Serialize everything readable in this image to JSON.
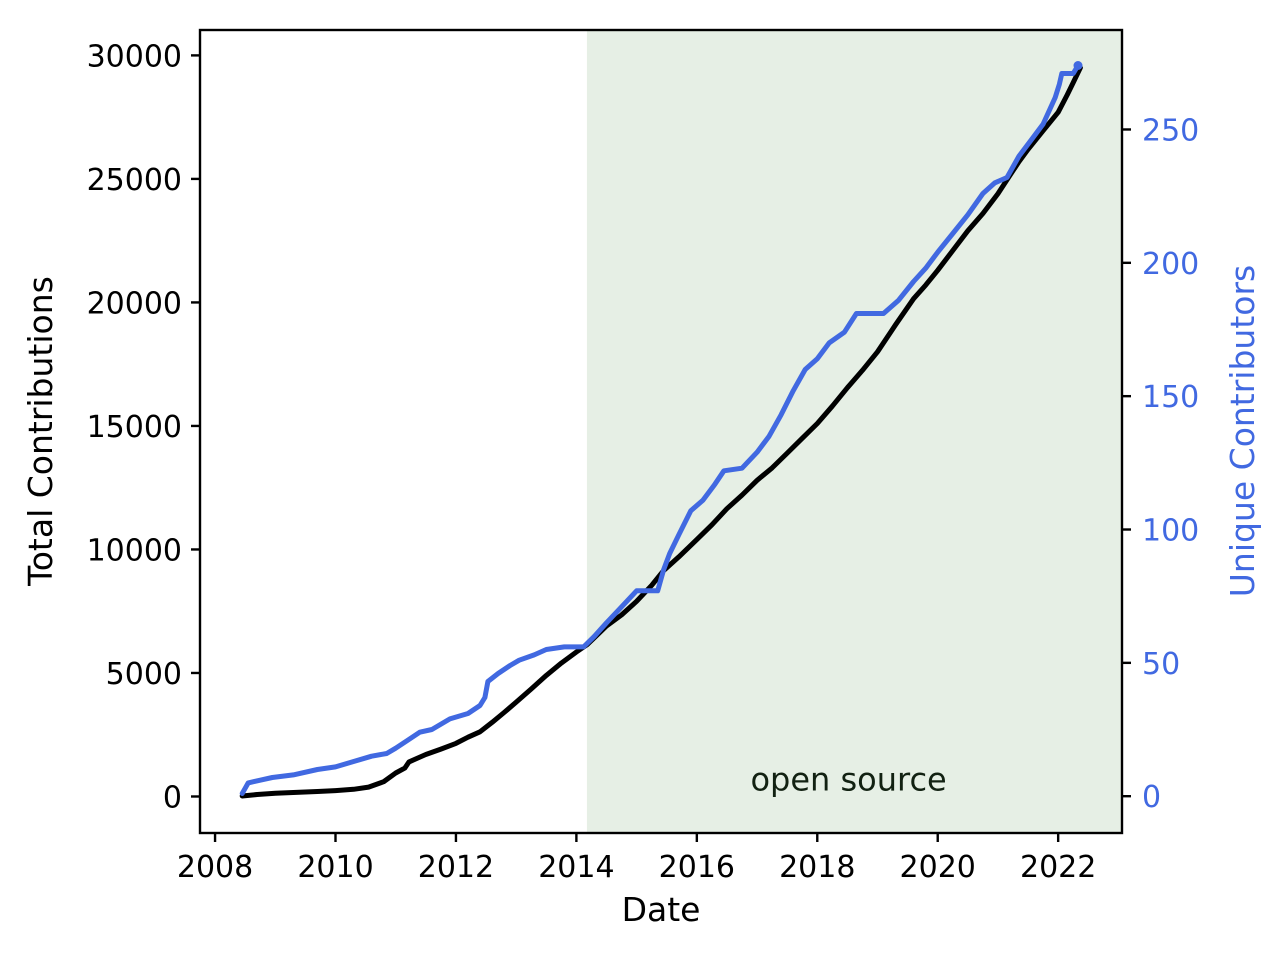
{
  "chart_data": {
    "type": "line",
    "title": "",
    "xlabel": "Date",
    "ylabel_left": "Total Contributions",
    "ylabel_right": "Unique Contributors",
    "xlim": [
      2007.75,
      2023.06
    ],
    "ylim_left": [
      -1478,
      31028
    ],
    "ylim_right": [
      -13.8,
      287.3
    ],
    "grid": false,
    "legend": "none",
    "x_ticks": [
      {
        "v": 2008,
        "label": "2008"
      },
      {
        "v": 2010,
        "label": "2010"
      },
      {
        "v": 2012,
        "label": "2012"
      },
      {
        "v": 2014,
        "label": "2014"
      },
      {
        "v": 2016,
        "label": "2016"
      },
      {
        "v": 2018,
        "label": "2018"
      },
      {
        "v": 2020,
        "label": "2020"
      },
      {
        "v": 2022,
        "label": "2022"
      }
    ],
    "y_ticks_left": [
      {
        "v": 0,
        "label": "0"
      },
      {
        "v": 5000,
        "label": "5000"
      },
      {
        "v": 10000,
        "label": "10000"
      },
      {
        "v": 15000,
        "label": "15000"
      },
      {
        "v": 20000,
        "label": "20000"
      },
      {
        "v": 25000,
        "label": "25000"
      },
      {
        "v": 30000,
        "label": "30000"
      }
    ],
    "y_ticks_right": [
      {
        "v": 0,
        "label": "0"
      },
      {
        "v": 50,
        "label": "50"
      },
      {
        "v": 100,
        "label": "100"
      },
      {
        "v": 150,
        "label": "150"
      },
      {
        "v": 200,
        "label": "200"
      },
      {
        "v": 250,
        "label": "250"
      }
    ],
    "shaded_region": {
      "x_start": 2014.175,
      "x_end": 2023.06,
      "color": "#e6efe5",
      "meaning": "period after project went open source"
    },
    "annotation": {
      "text": "open source",
      "x": 2018.52,
      "y_left": 250
    },
    "colors": {
      "total_contributions_line": "#000000",
      "unique_contributors_line": "#4169e1",
      "right_axis_text": "#4169e1",
      "annotation_text": "#122112",
      "spine": "#000000",
      "background": "#ffffff"
    },
    "series": [
      {
        "name": "Total Contributions",
        "axis": "left",
        "color": "#000000",
        "points": [
          [
            2008.45,
            20
          ],
          [
            2008.7,
            80
          ],
          [
            2009.0,
            130
          ],
          [
            2009.3,
            160
          ],
          [
            2009.7,
            200
          ],
          [
            2010.0,
            240
          ],
          [
            2010.3,
            290
          ],
          [
            2010.55,
            380
          ],
          [
            2010.8,
            600
          ],
          [
            2011.0,
            950
          ],
          [
            2011.15,
            1150
          ],
          [
            2011.22,
            1400
          ],
          [
            2011.5,
            1700
          ],
          [
            2011.75,
            1920
          ],
          [
            2012.0,
            2150
          ],
          [
            2012.2,
            2400
          ],
          [
            2012.4,
            2620
          ],
          [
            2012.6,
            3000
          ],
          [
            2012.8,
            3400
          ],
          [
            2013.0,
            3820
          ],
          [
            2013.25,
            4350
          ],
          [
            2013.5,
            4900
          ],
          [
            2013.75,
            5400
          ],
          [
            2014.0,
            5850
          ],
          [
            2014.18,
            6150
          ],
          [
            2014.5,
            6900
          ],
          [
            2014.75,
            7350
          ],
          [
            2015.0,
            7900
          ],
          [
            2015.25,
            8550
          ],
          [
            2015.45,
            9150
          ],
          [
            2015.7,
            9700
          ],
          [
            2016.0,
            10400
          ],
          [
            2016.25,
            11000
          ],
          [
            2016.5,
            11650
          ],
          [
            2016.75,
            12200
          ],
          [
            2017.0,
            12800
          ],
          [
            2017.25,
            13300
          ],
          [
            2017.5,
            13900
          ],
          [
            2017.75,
            14500
          ],
          [
            2018.0,
            15100
          ],
          [
            2018.25,
            15800
          ],
          [
            2018.5,
            16550
          ],
          [
            2018.75,
            17250
          ],
          [
            2019.0,
            18000
          ],
          [
            2019.3,
            19100
          ],
          [
            2019.6,
            20150
          ],
          [
            2019.8,
            20700
          ],
          [
            2020.0,
            21300
          ],
          [
            2020.25,
            22100
          ],
          [
            2020.5,
            22900
          ],
          [
            2020.75,
            23600
          ],
          [
            2021.0,
            24400
          ],
          [
            2021.16,
            25000
          ],
          [
            2021.35,
            25700
          ],
          [
            2021.5,
            26200
          ],
          [
            2021.75,
            26950
          ],
          [
            2022.0,
            27700
          ],
          [
            2022.15,
            28400
          ],
          [
            2022.25,
            28900
          ],
          [
            2022.37,
            29500
          ]
        ]
      },
      {
        "name": "Unique Contributors",
        "axis": "right",
        "color": "#4169e1",
        "points": [
          [
            2008.45,
            1
          ],
          [
            2008.5,
            3
          ],
          [
            2008.55,
            5
          ],
          [
            2008.75,
            6
          ],
          [
            2008.95,
            7
          ],
          [
            2009.3,
            8
          ],
          [
            2009.7,
            10
          ],
          [
            2010.0,
            11
          ],
          [
            2010.3,
            13
          ],
          [
            2010.6,
            15
          ],
          [
            2010.85,
            16
          ],
          [
            2011.0,
            18
          ],
          [
            2011.2,
            21
          ],
          [
            2011.4,
            24
          ],
          [
            2011.6,
            25
          ],
          [
            2011.9,
            29
          ],
          [
            2012.2,
            31
          ],
          [
            2012.4,
            34
          ],
          [
            2012.48,
            37
          ],
          [
            2012.53,
            43
          ],
          [
            2012.7,
            46
          ],
          [
            2012.9,
            49
          ],
          [
            2013.05,
            51
          ],
          [
            2013.3,
            53
          ],
          [
            2013.5,
            55
          ],
          [
            2013.8,
            56
          ],
          [
            2014.12,
            56
          ],
          [
            2014.3,
            60
          ],
          [
            2014.5,
            65
          ],
          [
            2014.75,
            71
          ],
          [
            2015.0,
            77
          ],
          [
            2015.35,
            77
          ],
          [
            2015.45,
            85
          ],
          [
            2015.55,
            91
          ],
          [
            2015.7,
            98
          ],
          [
            2015.9,
            107
          ],
          [
            2016.1,
            111
          ],
          [
            2016.3,
            117
          ],
          [
            2016.45,
            122
          ],
          [
            2016.75,
            123
          ],
          [
            2017.0,
            129
          ],
          [
            2017.2,
            135
          ],
          [
            2017.4,
            143
          ],
          [
            2017.6,
            152
          ],
          [
            2017.8,
            160
          ],
          [
            2018.0,
            164
          ],
          [
            2018.2,
            170
          ],
          [
            2018.45,
            174
          ],
          [
            2018.65,
            181
          ],
          [
            2019.1,
            181
          ],
          [
            2019.35,
            186
          ],
          [
            2019.6,
            193
          ],
          [
            2019.8,
            198
          ],
          [
            2020.0,
            204
          ],
          [
            2020.25,
            211
          ],
          [
            2020.5,
            218
          ],
          [
            2020.75,
            226
          ],
          [
            2020.95,
            230
          ],
          [
            2021.15,
            232
          ],
          [
            2021.35,
            240
          ],
          [
            2021.55,
            246
          ],
          [
            2021.75,
            252
          ],
          [
            2021.95,
            262
          ],
          [
            2022.02,
            267
          ],
          [
            2022.06,
            271
          ],
          [
            2022.25,
            271
          ],
          [
            2022.33,
            274
          ]
        ]
      }
    ]
  }
}
